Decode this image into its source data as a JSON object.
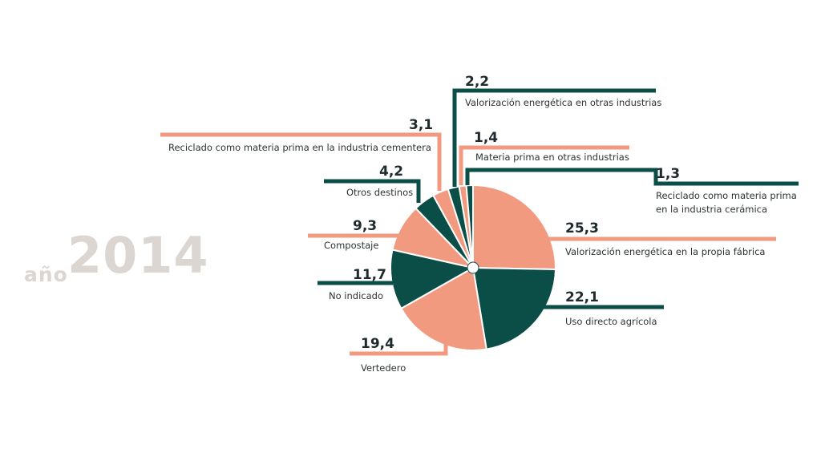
{
  "year": {
    "prefix": "año",
    "value": "2014"
  },
  "colors": {
    "salmon": "#f29a80",
    "teal": "#0b4d47"
  },
  "chart_data": {
    "type": "pie",
    "slices": [
      {
        "label": "Valorización energética en la propia fábrica",
        "value_text": "25,3",
        "value": 25.3,
        "color": "#f29a80"
      },
      {
        "label": "Uso directo agrícola",
        "value_text": "22,1",
        "value": 22.1,
        "color": "#0b4d47"
      },
      {
        "label": "Vertedero",
        "value_text": "19,4",
        "value": 19.4,
        "color": "#f29a80"
      },
      {
        "label": "No indicado",
        "value_text": "11,7",
        "value": 11.7,
        "color": "#0b4d47"
      },
      {
        "label": "Compostaje",
        "value_text": "9,3",
        "value": 9.3,
        "color": "#f29a80"
      },
      {
        "label": "Otros destinos",
        "value_text": "4,2",
        "value": 4.2,
        "color": "#0b4d47"
      },
      {
        "label": "Reciclado como materia prima en la industria cementera",
        "value_text": "3,1",
        "value": 3.1,
        "color": "#f29a80"
      },
      {
        "label": "Valorización energética en otras industrias",
        "value_text": "2,2",
        "value": 2.2,
        "color": "#0b4d47"
      },
      {
        "label": "Materia prima en otras industrias",
        "value_text": "1,4",
        "value": 1.4,
        "color": "#f29a80"
      },
      {
        "label": "Reciclado como materia prima en la industria cerámica",
        "value_text": "1,3",
        "value": 1.3,
        "color": "#0b4d47"
      }
    ]
  }
}
